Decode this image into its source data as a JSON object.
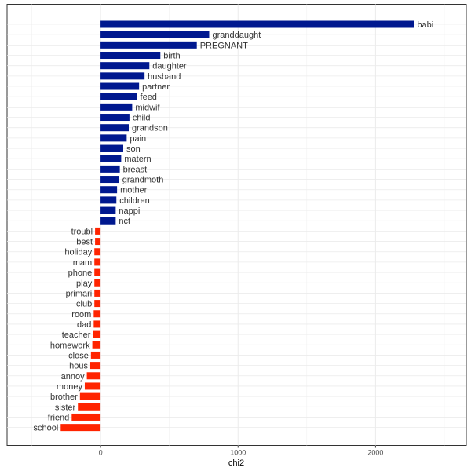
{
  "chart_data": {
    "type": "bar",
    "orientation": "horizontal",
    "xlabel": "chi2",
    "ylabel": "",
    "title": "",
    "xlim": [
      -680,
      2660
    ],
    "xticks": [
      0,
      1000,
      2000
    ],
    "xtick_labels": [
      "0",
      "1000",
      "2000"
    ],
    "grid": true,
    "legend": "none",
    "colors": {
      "positive": "#00188F",
      "negative": "#FF2400"
    },
    "bars": [
      {
        "term": "babi",
        "value": 2280
      },
      {
        "term": "granddaught",
        "value": 790
      },
      {
        "term": "PREGNANT",
        "value": 700
      },
      {
        "term": "birth",
        "value": 435
      },
      {
        "term": "daughter",
        "value": 355
      },
      {
        "term": "husband",
        "value": 320
      },
      {
        "term": "partner",
        "value": 280
      },
      {
        "term": "feed",
        "value": 265
      },
      {
        "term": "midwif",
        "value": 230
      },
      {
        "term": "child",
        "value": 210
      },
      {
        "term": "grandson",
        "value": 205
      },
      {
        "term": "pain",
        "value": 190
      },
      {
        "term": "son",
        "value": 165
      },
      {
        "term": "matern",
        "value": 150
      },
      {
        "term": "breast",
        "value": 140
      },
      {
        "term": "grandmoth",
        "value": 135
      },
      {
        "term": "mother",
        "value": 120
      },
      {
        "term": "children",
        "value": 115
      },
      {
        "term": "nappi",
        "value": 110
      },
      {
        "term": "nct",
        "value": 110
      },
      {
        "term": "troubl",
        "value": -40
      },
      {
        "term": "best",
        "value": -40
      },
      {
        "term": "holiday",
        "value": -45
      },
      {
        "term": "mam",
        "value": -45
      },
      {
        "term": "phone",
        "value": -45
      },
      {
        "term": "play",
        "value": -45
      },
      {
        "term": "primari",
        "value": -45
      },
      {
        "term": "club",
        "value": -45
      },
      {
        "term": "room",
        "value": -50
      },
      {
        "term": "dad",
        "value": -50
      },
      {
        "term": "teacher",
        "value": -55
      },
      {
        "term": "homework",
        "value": -60
      },
      {
        "term": "close",
        "value": -70
      },
      {
        "term": "hous",
        "value": -75
      },
      {
        "term": "annoy",
        "value": -100
      },
      {
        "term": "money",
        "value": -115
      },
      {
        "term": "brother",
        "value": -150
      },
      {
        "term": "sister",
        "value": -165
      },
      {
        "term": "friend",
        "value": -210
      },
      {
        "term": "school",
        "value": -290
      }
    ]
  }
}
